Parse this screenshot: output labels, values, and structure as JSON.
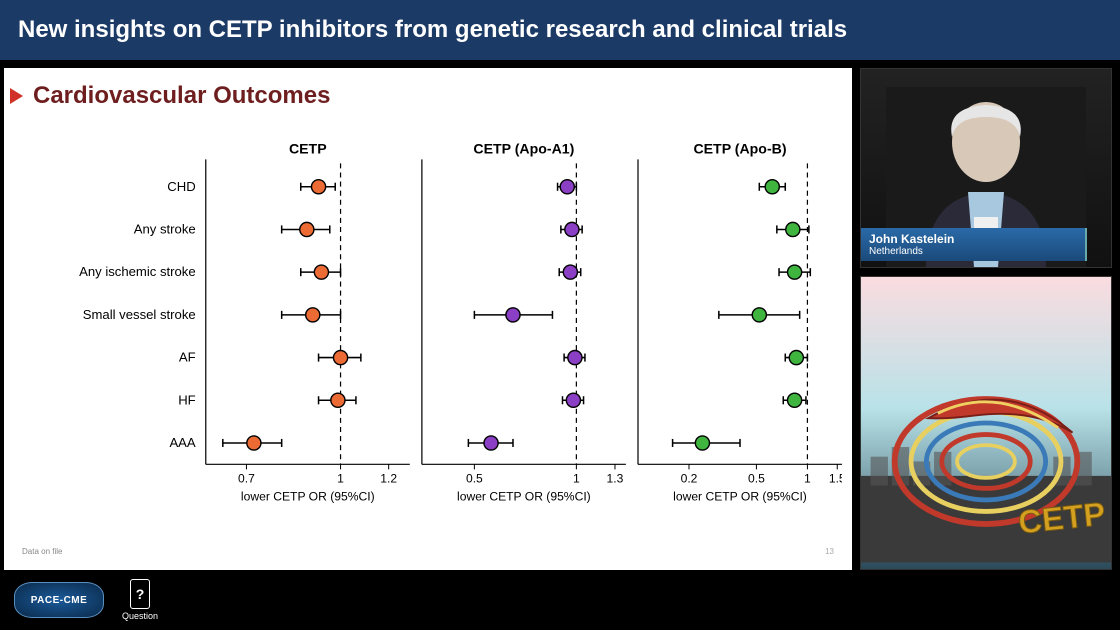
{
  "header": {
    "title": "New insights on CETP inhibitors from genetic research and clinical trials"
  },
  "slide": {
    "title": "Cardiovascular Outcomes",
    "note": "Data on file",
    "page": "13"
  },
  "chart": {
    "type": "forest",
    "background_color": "#ffffff",
    "outcomes": [
      "CHD",
      "Any stroke",
      "Any ischemic stroke",
      "Small vessel stroke",
      "AF",
      "HF",
      "AAA"
    ],
    "ylabel_fontsize": 13,
    "panel_title_fontsize": 14,
    "tick_fontsize": 12,
    "xaxis_label": "lower CETP OR (95%CI)",
    "ref_line": 1.0,
    "ref_line_style": "dashed",
    "ref_line_color": "#000000",
    "axis_color": "#000000",
    "marker_size": 7,
    "marker_border": "#000000",
    "error_bar_width": 1.5,
    "panels": [
      {
        "title": "CETP",
        "color": "#ec6b34",
        "xlim": [
          0.6,
          1.3
        ],
        "xticks": [
          0.7,
          1.0,
          1.2
        ],
        "points": [
          {
            "or": 0.92,
            "lo": 0.86,
            "hi": 0.98
          },
          {
            "or": 0.88,
            "lo": 0.8,
            "hi": 0.96
          },
          {
            "or": 0.93,
            "lo": 0.86,
            "hi": 1.0
          },
          {
            "or": 0.9,
            "lo": 0.8,
            "hi": 1.0
          },
          {
            "or": 1.0,
            "lo": 0.92,
            "hi": 1.08
          },
          {
            "or": 0.99,
            "lo": 0.92,
            "hi": 1.06
          },
          {
            "or": 0.72,
            "lo": 0.64,
            "hi": 0.8
          }
        ]
      },
      {
        "title": "CETP (Apo-A1)",
        "color": "#8a3fc4",
        "xlim": [
          0.35,
          1.4
        ],
        "xticks": [
          0.5,
          1.0,
          1.3
        ],
        "points": [
          {
            "or": 0.94,
            "lo": 0.88,
            "hi": 1.0
          },
          {
            "or": 0.97,
            "lo": 0.9,
            "hi": 1.04
          },
          {
            "or": 0.96,
            "lo": 0.89,
            "hi": 1.03
          },
          {
            "or": 0.65,
            "lo": 0.5,
            "hi": 0.85
          },
          {
            "or": 0.99,
            "lo": 0.92,
            "hi": 1.06
          },
          {
            "or": 0.98,
            "lo": 0.91,
            "hi": 1.05
          },
          {
            "or": 0.56,
            "lo": 0.48,
            "hi": 0.65
          }
        ]
      },
      {
        "title": "CETP (Apo-B)",
        "color": "#3fb43f",
        "xlim": [
          0.1,
          1.6
        ],
        "xticks": [
          0.2,
          0.5,
          1.0,
          1.5
        ],
        "points": [
          {
            "or": 0.62,
            "lo": 0.52,
            "hi": 0.74
          },
          {
            "or": 0.82,
            "lo": 0.66,
            "hi": 1.02
          },
          {
            "or": 0.84,
            "lo": 0.68,
            "hi": 1.04
          },
          {
            "or": 0.52,
            "lo": 0.3,
            "hi": 0.9
          },
          {
            "or": 0.86,
            "lo": 0.74,
            "hi": 1.0
          },
          {
            "or": 0.84,
            "lo": 0.72,
            "hi": 0.98
          },
          {
            "or": 0.24,
            "lo": 0.16,
            "hi": 0.4
          }
        ]
      }
    ]
  },
  "speaker": {
    "name": "John Kastelein",
    "country": "Netherlands"
  },
  "conference_logo": {
    "text": "CETP"
  },
  "footer": {
    "brand": "PACE-CME",
    "question_label": "Question"
  }
}
